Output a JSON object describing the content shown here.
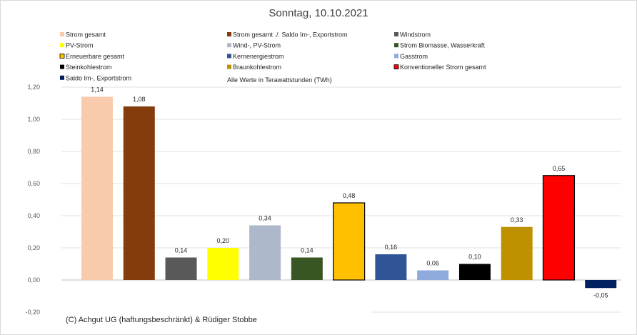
{
  "chart_data": {
    "type": "bar",
    "title": "Sonntag, 10.10.2021",
    "note": "Alle Werte in Terawattstunden (TWh)",
    "credit": "(C) Achgut UG (haftungsbeschränkt) & Rüdiger Stobbe",
    "xlabel": "",
    "ylabel": "",
    "ylim": [
      -0.2,
      1.2
    ],
    "yticks": [
      "-0,20",
      "0,00",
      "0,20",
      "0,40",
      "0,60",
      "0,80",
      "1,00",
      "1,20"
    ],
    "ytick_values": [
      -0.2,
      0.0,
      0.2,
      0.4,
      0.6,
      0.8,
      1.0,
      1.2
    ],
    "grid": true,
    "legend_position": "top",
    "series": [
      {
        "name": "Strom gesamt",
        "value": 1.14,
        "label": "1,14",
        "color": "#f8cbad",
        "outline": false
      },
      {
        "name": "Strom gesamt ./. Saldo Im-, Exportstrom",
        "value": 1.08,
        "label": "1,08",
        "color": "#843c0c",
        "outline": false
      },
      {
        "name": "Windstrom",
        "value": 0.14,
        "label": "0,14",
        "color": "#595959",
        "outline": false
      },
      {
        "name": "PV-Strom",
        "value": 0.2,
        "label": "0,20",
        "color": "#ffff00",
        "outline": false
      },
      {
        "name": "Wind-, PV-Strom",
        "value": 0.34,
        "label": "0,34",
        "color": "#adb9ca",
        "outline": false
      },
      {
        "name": "Strom Biomasse, Wasserkraft",
        "value": 0.14,
        "label": "0,14",
        "color": "#375623",
        "outline": false
      },
      {
        "name": "Erneuerbare gesamt",
        "value": 0.48,
        "label": "0,48",
        "color": "#ffc000",
        "outline": true
      },
      {
        "name": "Kernenergiestrom",
        "value": 0.16,
        "label": "0,16",
        "color": "#2f5597",
        "outline": false
      },
      {
        "name": "Gasstrom",
        "value": 0.06,
        "label": "0,06",
        "color": "#8faadc",
        "outline": false
      },
      {
        "name": "Steinkohlestrom",
        "value": 0.1,
        "label": "0,10",
        "color": "#000000",
        "outline": false
      },
      {
        "name": "Braunkohlestrom",
        "value": 0.33,
        "label": "0,33",
        "color": "#bf9000",
        "outline": false
      },
      {
        "name": "Konventioneller Strom gesamt",
        "value": 0.65,
        "label": "0,65",
        "color": "#ff0000",
        "outline": true
      },
      {
        "name": "Saldo Im-, Exportstrom",
        "value": -0.05,
        "label": "-0,05",
        "color": "#002060",
        "outline": false
      }
    ]
  }
}
